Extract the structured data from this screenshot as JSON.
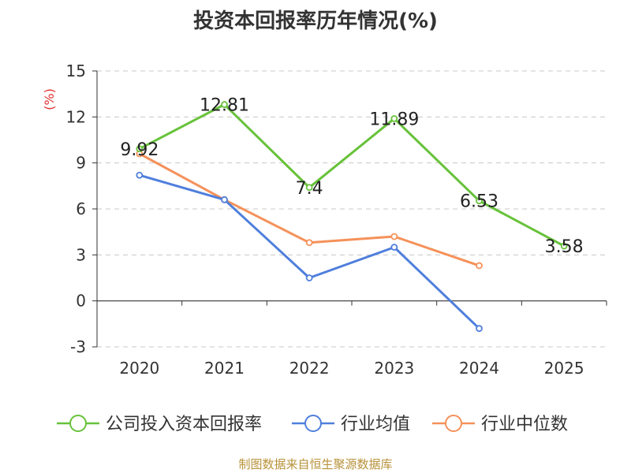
{
  "chart_data": {
    "type": "line",
    "title": "投资本回报率历年情况(%)",
    "ylabel": "(%)",
    "xlabel": "",
    "categories": [
      "2020",
      "2021",
      "2022",
      "2023",
      "2024",
      "2025"
    ],
    "ylim": [
      -3,
      15
    ],
    "yticks": [
      -3,
      0,
      3,
      6,
      9,
      12,
      15
    ],
    "grid": true,
    "legend_position": "bottom",
    "series": [
      {
        "name": "公司投入资本回报率",
        "color": "#67c23a",
        "values": [
          9.92,
          12.81,
          7.4,
          11.89,
          6.53,
          3.58
        ],
        "labels": [
          "9.92",
          "12.81",
          "7.4",
          "11.89",
          "6.53",
          "3.58"
        ]
      },
      {
        "name": "行业均值",
        "color": "#4f7fdc",
        "values": [
          8.2,
          6.6,
          1.5,
          3.5,
          -1.8,
          null
        ]
      },
      {
        "name": "行业中位数",
        "color": "#f5915a",
        "values": [
          9.6,
          6.6,
          3.8,
          4.2,
          2.3,
          null
        ]
      }
    ]
  },
  "source": "制图数据来自恒生聚源数据库",
  "ylabel_color": "#e03030"
}
